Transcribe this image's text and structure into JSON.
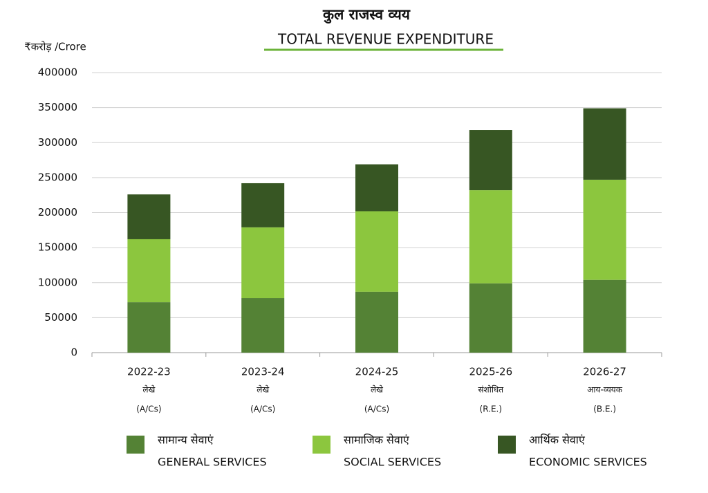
{
  "chart_data": {
    "type": "stacked_bar",
    "title": "कुल राजस्व व्यय",
    "subtitle": "TOTAL REVENUE EXPENDITURE",
    "y_label": "₹करोड़ /Crore",
    "categories": [
      "2022-23",
      "2023-24",
      "2024-25",
      "2025-26",
      "2026-27"
    ],
    "category_sublabels": [
      [
        "लेखे",
        "(A/Cs)"
      ],
      [
        "लेखे",
        "(A/Cs)"
      ],
      [
        "लेखे",
        "(A/Cs)"
      ],
      [
        "संशोधित",
        "(R.E.)"
      ],
      [
        "आय-व्ययक",
        "(B.E.)"
      ]
    ],
    "series": [
      {
        "name": "सामान्य सेवाएं",
        "name_en": "GENERAL SERVICES",
        "color": "#548235",
        "values": [
          72000,
          78000,
          87000,
          99000,
          104000
        ]
      },
      {
        "name": "सामाजिक सेवाएं",
        "name_en": "SOCIAL SERVICES",
        "color": "#8cc63e",
        "values": [
          90000,
          101000,
          115000,
          133000,
          143000
        ]
      },
      {
        "name": "आर्थिक सेवाएं",
        "name_en": "ECONOMIC SERVICES",
        "color": "#375623",
        "values": [
          64000,
          63000,
          67000,
          86000,
          102000
        ]
      }
    ],
    "ylim": [
      0,
      400000
    ],
    "yticks": [
      0,
      50000,
      100000,
      150000,
      200000,
      250000,
      300000,
      350000,
      400000
    ],
    "grid": true
  }
}
